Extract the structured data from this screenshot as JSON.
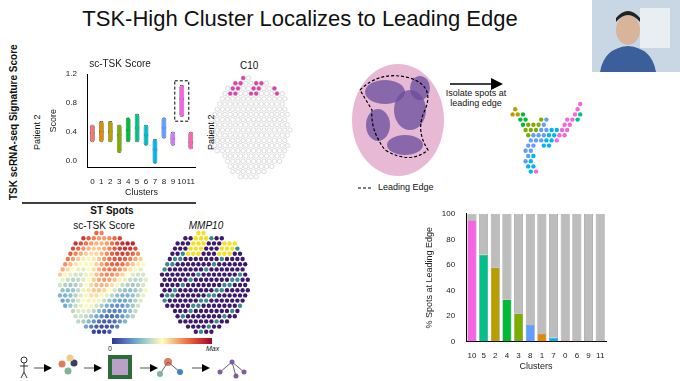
{
  "title": "TSK-High Cluster Localizes to Leading Edge",
  "side_label": "TSK scRNA-seq Signature Score",
  "group_label": "ST Spots",
  "panels": {
    "c10_map": {
      "title": "C10",
      "row_label": "Patient 2"
    },
    "tsk_map": {
      "title": "sc-TSK Score"
    },
    "mmp10_map": {
      "title": "MMP10"
    },
    "arrow_label": "Isolate spots at leading edge",
    "legend_label": "Leading Edge",
    "colorbar": {
      "min": 0,
      "max_label": "Max"
    }
  },
  "chart_data": [
    {
      "type": "violin",
      "title": "sc-TSK Score",
      "row_label": "Patient 2",
      "x_label": "Clusters",
      "y_label": "Score",
      "categories": [
        "0",
        "1",
        "2",
        "3",
        "4",
        "5",
        "6",
        "7",
        "8",
        "9",
        "10",
        "11"
      ],
      "low": [
        0.25,
        0.25,
        0.25,
        0.1,
        0.25,
        0.25,
        0.2,
        -0.05,
        0.3,
        0.2,
        0.6,
        0.15
      ],
      "median": [
        0.38,
        0.4,
        0.4,
        0.35,
        0.42,
        0.45,
        0.35,
        0.15,
        0.45,
        0.3,
        0.85,
        0.25
      ],
      "high": [
        0.5,
        0.55,
        0.55,
        0.5,
        0.6,
        0.65,
        0.5,
        0.3,
        0.6,
        0.4,
        1.05,
        0.4
      ],
      "colors": [
        "#F8766D",
        "#DE8C00",
        "#B79F00",
        "#7CAE00",
        "#00BA38",
        "#00C08B",
        "#00BFC4",
        "#00B4F0",
        "#619CFF",
        "#C77CFF",
        "#F564E3",
        "#FF64B0"
      ],
      "ylim": [
        -0.1,
        1.2
      ],
      "yticks": [
        {
          "value": 0,
          "label": "0.0"
        },
        {
          "value": 0.4,
          "label": "0.4"
        },
        {
          "value": 0.8,
          "label": "0.8"
        },
        {
          "value": 1.2,
          "label": "1.2"
        }
      ],
      "grid": false
    },
    {
      "type": "bar",
      "x_label": "Clusters",
      "y_label": "% Spots at Leading Edge",
      "categories": [
        "10",
        "5",
        "2",
        "4",
        "3",
        "8",
        "1",
        "7",
        "0",
        "6",
        "9",
        "11"
      ],
      "series": [
        {
          "values": [
            95,
            68,
            58,
            33,
            22,
            13,
            6,
            3,
            1,
            0,
            0,
            0
          ],
          "colors": [
            "#F564E3",
            "#00C08B",
            "#B79F00",
            "#00BA38",
            "#7CAE00",
            "#619CFF",
            "#DE8C00",
            "#00B4F0",
            "#F8766D",
            "#00BFC4",
            "#C77CFF",
            "#FF64B0"
          ]
        },
        {
          "values": [
            5,
            32,
            42,
            67,
            78,
            87,
            94,
            97,
            99,
            100,
            100,
            100
          ],
          "color": "#bdbdbd"
        }
      ],
      "stacked": true,
      "ylim": [
        0,
        100
      ],
      "yticks": [
        0,
        20,
        40,
        60,
        80,
        100
      ],
      "grid": false
    }
  ]
}
